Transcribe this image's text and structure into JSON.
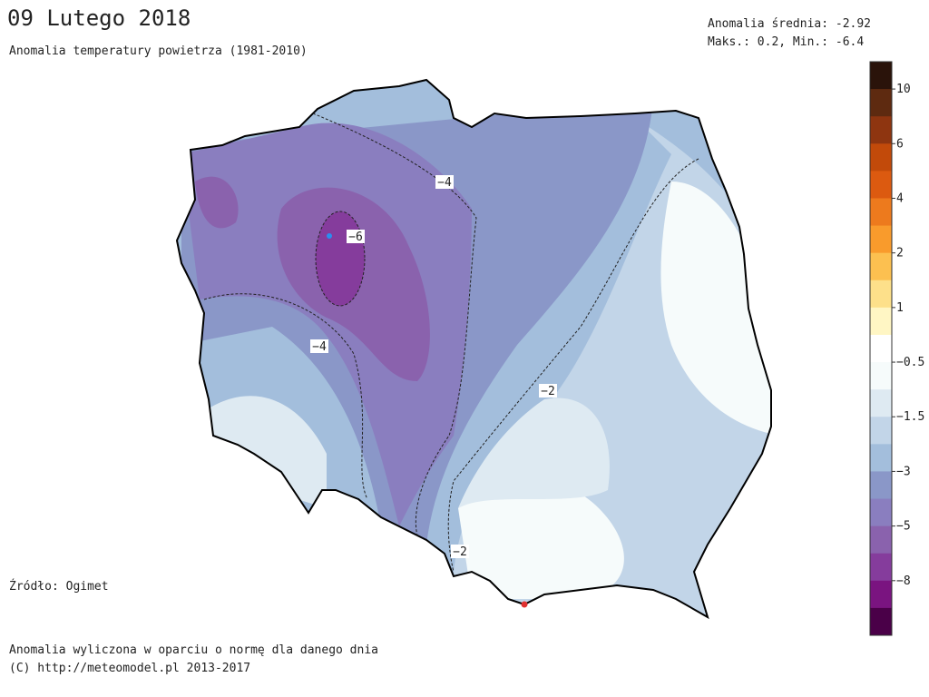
{
  "header": {
    "title": "09 Lutego 2018",
    "subtitle": "Anomalia temperatury powietrza (1981-2010)"
  },
  "stats": {
    "mean": "Anomalia średnia: -2.92",
    "range": "Maks.: 0.2, Min.: -6.4"
  },
  "source": "Źródło: Ogimet",
  "footer": {
    "note": "Anomalia wyliczona w oparciu o normę dla danego dnia",
    "copyright": "(C) http://meteomodel.pl 2013-2017"
  },
  "contour_labels": [
    "−4",
    "−6",
    "−4",
    "−2",
    "−2"
  ],
  "colorbar": {
    "labels": [
      "10",
      "6",
      "4",
      "2",
      "1",
      "−0.5",
      "−1.5",
      "−3",
      "−5",
      "−8"
    ],
    "colors": [
      "#2a130a",
      "#5e2a10",
      "#8e3510",
      "#c24a0a",
      "#dc5a10",
      "#ed7a1d",
      "#f99b2c",
      "#fcc050",
      "#fde08a",
      "#fff6c4",
      "#ffffff",
      "#f6fbfb",
      "#deeaf2",
      "#c2d5e8",
      "#a3bedc",
      "#8a97c8",
      "#8a7ebf",
      "#8a62ad",
      "#853c9c",
      "#7a1480",
      "#4a0048"
    ]
  }
}
